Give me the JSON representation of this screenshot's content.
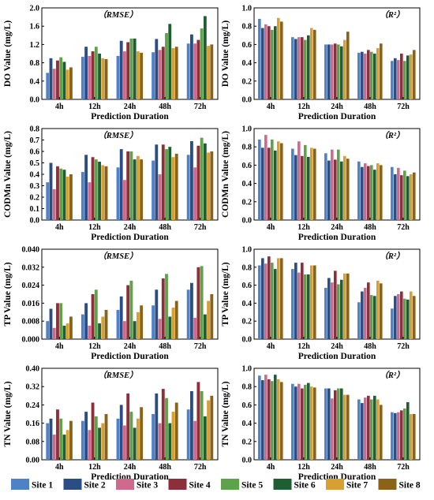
{
  "series_colors": [
    "#4f81c7",
    "#2a4d85",
    "#d06a8c",
    "#8c2f3a",
    "#5fa24b",
    "#1f5e33",
    "#d8a030",
    "#8a6218"
  ],
  "legend": [
    "Site 1",
    "Site 2",
    "Site 3",
    "Site 4",
    "Site 5",
    "Site 6",
    "Site 7",
    "Site 8"
  ],
  "chart_data": [
    {
      "type": "bar",
      "annotation": "（RMSE）",
      "ylabel": "DO Value (mg/L)",
      "xlabel": "Prediction Duration",
      "categories": [
        "4h",
        "12h",
        "24h",
        "48h",
        "72h"
      ],
      "yticks": [
        "0.0",
        "0.4",
        "0.8",
        "1.2",
        "1.6",
        "2.0"
      ],
      "ylim": [
        0,
        2.0
      ],
      "series": [
        {
          "name": "Site 1",
          "values": [
            0.58,
            0.93,
            0.95,
            1.03,
            1.22
          ]
        },
        {
          "name": "Site 2",
          "values": [
            0.9,
            1.15,
            1.28,
            1.32,
            1.42
          ]
        },
        {
          "name": "Site 3",
          "values": [
            0.67,
            0.95,
            1.05,
            1.08,
            1.22
          ]
        },
        {
          "name": "Site 4",
          "values": [
            0.85,
            1.05,
            1.25,
            1.15,
            1.3
          ]
        },
        {
          "name": "Site 5",
          "values": [
            0.92,
            1.15,
            1.33,
            1.45,
            1.55
          ]
        },
        {
          "name": "Site 6",
          "values": [
            0.82,
            1.0,
            1.33,
            1.65,
            1.82
          ]
        },
        {
          "name": "Site 7",
          "values": [
            0.65,
            0.9,
            1.05,
            1.12,
            1.17
          ]
        },
        {
          "name": "Site 8",
          "values": [
            0.7,
            0.88,
            1.02,
            1.15,
            1.2
          ]
        }
      ]
    },
    {
      "type": "bar",
      "annotation": "（R²）",
      "ylabel": "DO Value (mg/L)",
      "xlabel": "Prediction Duration",
      "categories": [
        "4h",
        "12h",
        "24h",
        "48h",
        "72h"
      ],
      "yticks": [
        "0.0",
        "0.2",
        "0.4",
        "0.6",
        "0.8",
        "1.0"
      ],
      "ylim": [
        0,
        1.0
      ],
      "series": [
        {
          "name": "Site 1",
          "values": [
            0.88,
            0.68,
            0.6,
            0.51,
            0.42
          ]
        },
        {
          "name": "Site 2",
          "values": [
            0.78,
            0.66,
            0.6,
            0.52,
            0.45
          ]
        },
        {
          "name": "Site 3",
          "values": [
            0.82,
            0.68,
            0.6,
            0.5,
            0.43
          ]
        },
        {
          "name": "Site 4",
          "values": [
            0.8,
            0.68,
            0.61,
            0.54,
            0.5
          ]
        },
        {
          "name": "Site 5",
          "values": [
            0.76,
            0.65,
            0.6,
            0.52,
            0.42
          ]
        },
        {
          "name": "Site 6",
          "values": [
            0.8,
            0.7,
            0.58,
            0.5,
            0.48
          ]
        },
        {
          "name": "Site 7",
          "values": [
            0.89,
            0.78,
            0.65,
            0.56,
            0.49
          ]
        },
        {
          "name": "Site 8",
          "values": [
            0.85,
            0.76,
            0.74,
            0.61,
            0.54
          ]
        }
      ]
    },
    {
      "type": "bar",
      "annotation": "（RMSE）",
      "ylabel": "CODMn Value (mg/L)",
      "xlabel": "Prediction Duration",
      "categories": [
        "4h",
        "12h",
        "24h",
        "48h",
        "72h"
      ],
      "yticks": [
        "0.0",
        "0.1",
        "0.2",
        "0.3",
        "0.4",
        "0.5",
        "0.6",
        "0.7",
        "0.8"
      ],
      "ylim": [
        0,
        0.8
      ],
      "series": [
        {
          "name": "Site 1",
          "values": [
            0.33,
            0.42,
            0.46,
            0.52,
            0.57
          ]
        },
        {
          "name": "Site 2",
          "values": [
            0.5,
            0.57,
            0.62,
            0.66,
            0.69
          ]
        },
        {
          "name": "Site 3",
          "values": [
            0.27,
            0.33,
            0.35,
            0.4,
            0.46
          ]
        },
        {
          "name": "Site 4",
          "values": [
            0.47,
            0.55,
            0.6,
            0.66,
            0.65
          ]
        },
        {
          "name": "Site 5",
          "values": [
            0.45,
            0.53,
            0.6,
            0.62,
            0.72
          ]
        },
        {
          "name": "Site 6",
          "values": [
            0.44,
            0.51,
            0.53,
            0.64,
            0.67
          ]
        },
        {
          "name": "Site 7",
          "values": [
            0.38,
            0.48,
            0.56,
            0.55,
            0.59
          ]
        },
        {
          "name": "Site 8",
          "values": [
            0.4,
            0.47,
            0.53,
            0.58,
            0.6
          ]
        }
      ]
    },
    {
      "type": "bar",
      "annotation": "（R²）",
      "ylabel": "CODMn Value (mg/L)",
      "xlabel": "Prediction Duration",
      "categories": [
        "4h",
        "12h",
        "24h",
        "48h",
        "72h"
      ],
      "yticks": [
        "0.0",
        "0.2",
        "0.4",
        "0.6",
        "0.8",
        "1.0"
      ],
      "ylim": [
        0,
        1.0
      ],
      "series": [
        {
          "name": "Site 1",
          "values": [
            0.88,
            0.78,
            0.73,
            0.64,
            0.58
          ]
        },
        {
          "name": "Site 2",
          "values": [
            0.79,
            0.71,
            0.65,
            0.58,
            0.5
          ]
        },
        {
          "name": "Site 3",
          "values": [
            0.93,
            0.86,
            0.77,
            0.62,
            0.57
          ]
        },
        {
          "name": "Site 4",
          "values": [
            0.79,
            0.7,
            0.66,
            0.59,
            0.49
          ]
        },
        {
          "name": "Site 5",
          "values": [
            0.88,
            0.82,
            0.77,
            0.6,
            0.54
          ]
        },
        {
          "name": "Site 6",
          "values": [
            0.76,
            0.69,
            0.64,
            0.55,
            0.48
          ]
        },
        {
          "name": "Site 7",
          "values": [
            0.86,
            0.79,
            0.7,
            0.62,
            0.5
          ]
        },
        {
          "name": "Site 8",
          "values": [
            0.84,
            0.78,
            0.67,
            0.6,
            0.52
          ]
        }
      ]
    },
    {
      "type": "bar",
      "annotation": "（RMSE）",
      "ylabel": "TP Value (mg/L)",
      "xlabel": "Prediction Duration",
      "categories": [
        "4h",
        "12h",
        "24h",
        "48h",
        "72h"
      ],
      "yticks": [
        "0.000",
        "0.008",
        "0.016",
        "0.024",
        "0.032",
        "0.040"
      ],
      "ylim": [
        0,
        0.04
      ],
      "series": [
        {
          "name": "Site 1",
          "values": [
            0.008,
            0.011,
            0.013,
            0.015,
            0.022
          ]
        },
        {
          "name": "Site 2",
          "values": [
            0.0135,
            0.016,
            0.019,
            0.022,
            0.025
          ]
        },
        {
          "name": "Site 3",
          "values": [
            0.005,
            0.006,
            0.008,
            0.009,
            0.0095
          ]
        },
        {
          "name": "Site 4",
          "values": [
            0.016,
            0.02,
            0.024,
            0.027,
            0.032
          ]
        },
        {
          "name": "Site 5",
          "values": [
            0.016,
            0.022,
            0.026,
            0.029,
            0.0325
          ]
        },
        {
          "name": "Site 6",
          "values": [
            0.006,
            0.007,
            0.008,
            0.01,
            0.011
          ]
        },
        {
          "name": "Site 7",
          "values": [
            0.007,
            0.01,
            0.012,
            0.014,
            0.017
          ]
        },
        {
          "name": "Site 8",
          "values": [
            0.01,
            0.013,
            0.015,
            0.017,
            0.02
          ]
        }
      ]
    },
    {
      "type": "bar",
      "annotation": "（R²）",
      "ylabel": "TP Value (mg/L)",
      "xlabel": "Prediction Duration",
      "categories": [
        "4h",
        "12h",
        "24h",
        "48h",
        "72h"
      ],
      "yticks": [
        "0.0",
        "0.2",
        "0.4",
        "0.6",
        "0.8",
        "1.0"
      ],
      "ylim": [
        0,
        1.0
      ],
      "series": [
        {
          "name": "Site 1",
          "values": [
            0.82,
            0.78,
            0.57,
            0.41,
            0.34
          ]
        },
        {
          "name": "Site 2",
          "values": [
            0.9,
            0.85,
            0.68,
            0.53,
            0.48
          ]
        },
        {
          "name": "Site 3",
          "values": [
            0.84,
            0.74,
            0.63,
            0.57,
            0.5
          ]
        },
        {
          "name": "Site 4",
          "values": [
            0.92,
            0.85,
            0.76,
            0.63,
            0.53
          ]
        },
        {
          "name": "Site 5",
          "values": [
            0.85,
            0.72,
            0.61,
            0.49,
            0.45
          ]
        },
        {
          "name": "Site 6",
          "values": [
            0.78,
            0.72,
            0.66,
            0.48,
            0.44
          ]
        },
        {
          "name": "Site 7",
          "values": [
            0.9,
            0.82,
            0.73,
            0.65,
            0.53
          ]
        },
        {
          "name": "Site 8",
          "values": [
            0.9,
            0.82,
            0.73,
            0.62,
            0.48
          ]
        }
      ]
    },
    {
      "type": "bar",
      "annotation": "（RMSE）",
      "ylabel": "TN Value (mg/L)",
      "xlabel": "Prediction Duration",
      "categories": [
        "4h",
        "12h",
        "24h",
        "48h",
        "72h"
      ],
      "yticks": [
        "0.00",
        "0.08",
        "0.16",
        "0.24",
        "0.32",
        "0.40"
      ],
      "ylim": [
        0,
        0.4
      ],
      "series": [
        {
          "name": "Site 1",
          "values": [
            0.16,
            0.17,
            0.18,
            0.2,
            0.22
          ]
        },
        {
          "name": "Site 2",
          "values": [
            0.18,
            0.21,
            0.24,
            0.29,
            0.3
          ]
        },
        {
          "name": "Site 3",
          "values": [
            0.11,
            0.13,
            0.15,
            0.16,
            0.17
          ]
        },
        {
          "name": "Site 4",
          "values": [
            0.22,
            0.25,
            0.29,
            0.31,
            0.34
          ]
        },
        {
          "name": "Site 5",
          "values": [
            0.18,
            0.19,
            0.21,
            0.27,
            0.3
          ]
        },
        {
          "name": "Site 6",
          "values": [
            0.11,
            0.14,
            0.14,
            0.16,
            0.19
          ]
        },
        {
          "name": "Site 7",
          "values": [
            0.13,
            0.16,
            0.18,
            0.21,
            0.26
          ]
        },
        {
          "name": "Site 8",
          "values": [
            0.17,
            0.2,
            0.23,
            0.25,
            0.28
          ]
        }
      ]
    },
    {
      "type": "bar",
      "annotation": "（R²）",
      "ylabel": "TN Value (mg/L)",
      "xlabel": "Prediction Duration",
      "categories": [
        "4h",
        "12h",
        "24h",
        "48h",
        "72h"
      ],
      "yticks": [
        "0.0",
        "0.2",
        "0.4",
        "0.6",
        "0.8",
        "1.0"
      ],
      "ylim": [
        0,
        1.0
      ],
      "series": [
        {
          "name": "Site 1",
          "values": [
            0.92,
            0.83,
            0.78,
            0.66,
            0.52
          ]
        },
        {
          "name": "Site 2",
          "values": [
            0.87,
            0.8,
            0.78,
            0.62,
            0.51
          ]
        },
        {
          "name": "Site 3",
          "values": [
            0.93,
            0.83,
            0.67,
            0.68,
            0.52
          ]
        },
        {
          "name": "Site 4",
          "values": [
            0.88,
            0.78,
            0.76,
            0.7,
            0.54
          ]
        },
        {
          "name": "Site 5",
          "values": [
            0.86,
            0.82,
            0.78,
            0.66,
            0.56
          ]
        },
        {
          "name": "Site 6",
          "values": [
            0.93,
            0.84,
            0.78,
            0.7,
            0.63
          ]
        },
        {
          "name": "Site 7",
          "values": [
            0.88,
            0.8,
            0.71,
            0.66,
            0.5
          ]
        },
        {
          "name": "Site 8",
          "values": [
            0.85,
            0.79,
            0.71,
            0.6,
            0.5
          ]
        }
      ]
    }
  ]
}
